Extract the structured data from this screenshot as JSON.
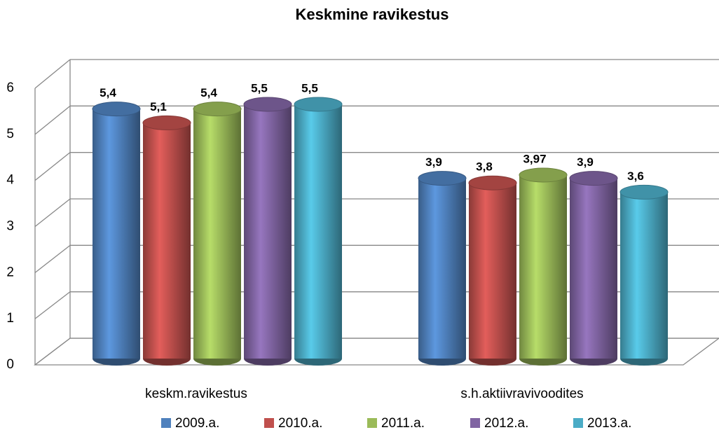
{
  "chart_data": {
    "type": "bar",
    "title": "Keskmine ravikestus",
    "categories": [
      "keskm.ravikestus",
      "s.h.aktiivravivoodites"
    ],
    "series": [
      {
        "name": "2009.a.",
        "color": "#4f81bd",
        "values": [
          5.4,
          3.9
        ],
        "value_labels": [
          "5,4",
          "3,9"
        ]
      },
      {
        "name": "2010.a.",
        "color": "#c0504d",
        "values": [
          5.1,
          3.8
        ],
        "value_labels": [
          "5,1",
          "3,8"
        ]
      },
      {
        "name": "2011.a.",
        "color": "#9bbb59",
        "values": [
          5.4,
          3.97
        ],
        "value_labels": [
          "5,4",
          "3,97"
        ]
      },
      {
        "name": "2012.a.",
        "color": "#8064a2",
        "values": [
          5.5,
          3.9
        ],
        "value_labels": [
          "5,5",
          "3,9"
        ]
      },
      {
        "name": "2013.a.",
        "color": "#4bacc6",
        "values": [
          5.5,
          3.6
        ],
        "value_labels": [
          "5,5",
          "3,6"
        ]
      }
    ],
    "ylim": [
      0,
      6
    ],
    "yticks": [
      0,
      1,
      2,
      3,
      4,
      5,
      6
    ],
    "grid": true,
    "legend": "bottom"
  }
}
